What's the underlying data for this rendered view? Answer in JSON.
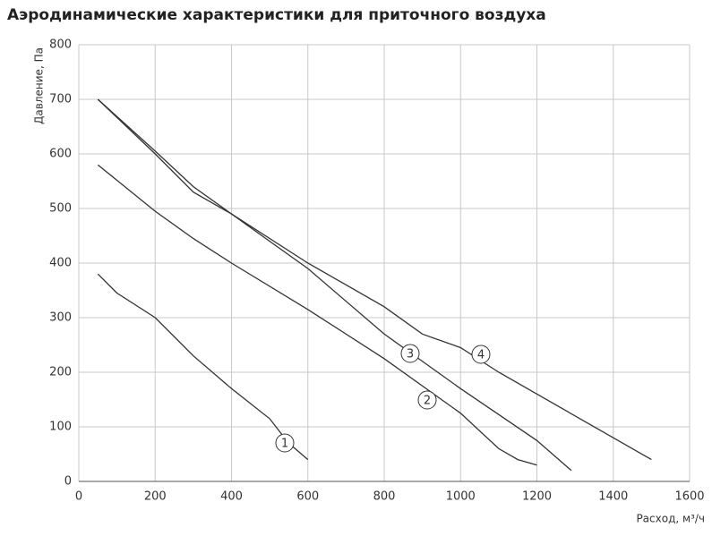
{
  "chart_data": {
    "type": "line",
    "title": "Аэродинамические характеристики для приточного воздуха",
    "x_label": "Расход, м³/ч",
    "y_label": "Давление, Па",
    "xlim": [
      0,
      1600
    ],
    "xticks": [
      0,
      200,
      400,
      600,
      800,
      1000,
      1200,
      1400,
      1600
    ],
    "ylim": [
      0,
      800
    ],
    "yticks": [
      0,
      100,
      200,
      300,
      400,
      500,
      600,
      700,
      800
    ],
    "grid": true,
    "series": [
      {
        "name": "1",
        "color": "#333333",
        "x": [
          50,
          100,
          200,
          300,
          400,
          500,
          550,
          600
        ],
        "values": [
          380,
          345,
          300,
          230,
          170,
          115,
          70,
          40
        ]
      },
      {
        "name": "2",
        "color": "#333333",
        "x": [
          50,
          200,
          300,
          400,
          600,
          800,
          1000,
          1100,
          1150,
          1200
        ],
        "values": [
          580,
          495,
          445,
          400,
          315,
          225,
          125,
          60,
          40,
          30
        ]
      },
      {
        "name": "3",
        "color": "#333333",
        "x": [
          50,
          200,
          300,
          400,
          500,
          600,
          800,
          1000,
          1200,
          1290
        ],
        "values": [
          700,
          600,
          530,
          490,
          440,
          390,
          270,
          170,
          75,
          20
        ]
      },
      {
        "name": "4",
        "color": "#333333",
        "x": [
          50,
          200,
          300,
          400,
          600,
          800,
          900,
          1000,
          1100,
          1300,
          1500
        ],
        "values": [
          700,
          605,
          540,
          490,
          400,
          320,
          270,
          245,
          200,
          120,
          40
        ]
      }
    ]
  }
}
